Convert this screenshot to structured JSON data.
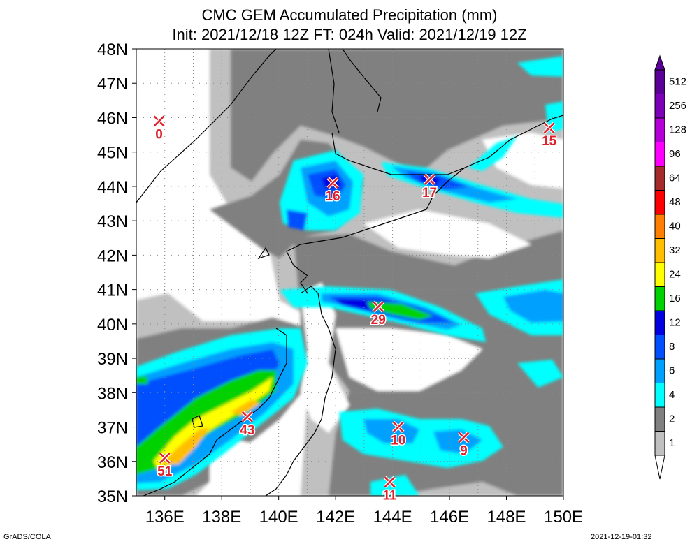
{
  "title": "CMC GEM Accumulated Precipitation (mm)",
  "subtitle": "Init: 2021/12/18 12Z  FT: 024h  Valid: 2021/12/19 12Z",
  "credit_left": "GrADS/COLA",
  "credit_right": "2021-12-19-01:32",
  "map": {
    "lat_labels": [
      "48N",
      "47N",
      "46N",
      "45N",
      "44N",
      "43N",
      "42N",
      "41N",
      "40N",
      "39N",
      "38N",
      "37N",
      "36N",
      "35N"
    ],
    "lon_labels": [
      "136E",
      "138E",
      "140E",
      "142E",
      "144E",
      "146E",
      "148E",
      "150E"
    ],
    "lon_range": [
      135,
      150
    ],
    "lat_range": [
      35,
      48
    ]
  },
  "legend": {
    "labels": [
      "512",
      "256",
      "128",
      "96",
      "64",
      "48",
      "40",
      "32",
      "24",
      "16",
      "12",
      "8",
      "6",
      "4",
      "2",
      "1"
    ],
    "colors": [
      "#5a0096",
      "#7d00b9",
      "#b400d7",
      "#ff00ff",
      "#a52a2a",
      "#ff0000",
      "#ff7f00",
      "#ffbf00",
      "#ffff00",
      "#00d200",
      "#0000e1",
      "#0050ff",
      "#00a0ff",
      "#00ffff",
      "#808080",
      "#c0c0c0"
    ]
  },
  "markers": [
    {
      "value": "0",
      "lon": 135.8,
      "lat": 45.9
    },
    {
      "value": "16",
      "lon": 141.9,
      "lat": 44.1
    },
    {
      "value": "17",
      "lon": 145.3,
      "lat": 44.2
    },
    {
      "value": "15",
      "lon": 149.5,
      "lat": 45.7
    },
    {
      "value": "29",
      "lon": 143.5,
      "lat": 40.5
    },
    {
      "value": "43",
      "lon": 138.9,
      "lat": 37.3
    },
    {
      "value": "51",
      "lon": 136.0,
      "lat": 36.1
    },
    {
      "value": "10",
      "lon": 144.2,
      "lat": 37.0
    },
    {
      "value": "9",
      "lon": 146.5,
      "lat": 36.7
    },
    {
      "value": "11",
      "lon": 143.9,
      "lat": 35.4
    }
  ]
}
